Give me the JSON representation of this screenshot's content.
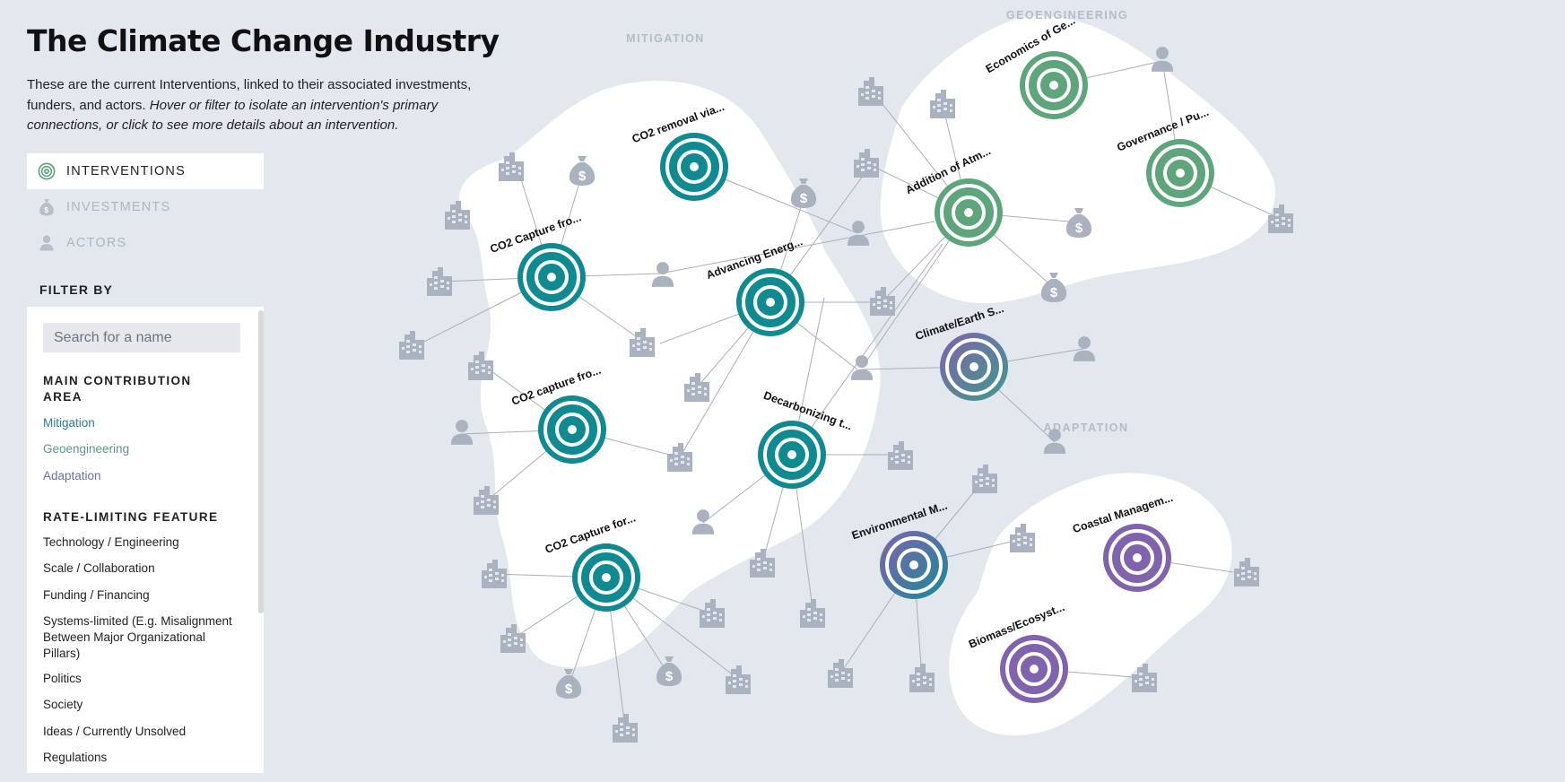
{
  "header": {
    "title": "The Climate Change Industry",
    "intro_plain": "These are the current Interventions, linked to their associated investments, funders, and actors. ",
    "intro_italic": "Hover or filter to isolate an intervention's primary connections, or click to see more details about an intervention."
  },
  "tabs": [
    {
      "label": "INTERVENTIONS",
      "icon": "target-icon",
      "active": true
    },
    {
      "label": "INVESTMENTS",
      "icon": "money-bag-icon",
      "active": false
    },
    {
      "label": "ACTORS",
      "icon": "person-icon",
      "active": false
    }
  ],
  "filter": {
    "heading": "FILTER BY",
    "search_placeholder": "Search for a name",
    "contribution_heading": "MAIN CONTRIBUTION AREA",
    "contribution_options": [
      "Mitigation",
      "Geoengineering",
      "Adaptation"
    ],
    "rate_heading": "RATE-LIMITING FEATURE",
    "rate_options": [
      "Technology / Engineering",
      "Scale / Collaboration",
      "Funding / Financing",
      "Systems-limited (E.g. Misalignment Between Major Organizational Pillars)",
      "Politics",
      "Society",
      "Ideas / Currently Unsolved",
      "Regulations"
    ]
  },
  "colors": {
    "background": "#e3e7ee",
    "mitigation": "#0e8a90",
    "geoengineering": "#5fa57b",
    "adaptation": "#8062ad",
    "node_grey": "#aab2bf"
  },
  "regions": [
    {
      "id": "mitigation",
      "label": "MITIGATION"
    },
    {
      "id": "geoengineering",
      "label": "GEOENGINEERING"
    },
    {
      "id": "adaptation",
      "label": "ADAPTATION"
    }
  ],
  "interventions": [
    {
      "id": "co2-removal",
      "label": "CO2 removal via...",
      "area": "mitigation"
    },
    {
      "id": "co2-capture-1",
      "label": "CO2 Capture fro...",
      "area": "mitigation"
    },
    {
      "id": "advancing-energy",
      "label": "Advancing Energ...",
      "area": "mitigation"
    },
    {
      "id": "co2-capture-2",
      "label": "CO2 capture fro...",
      "area": "mitigation"
    },
    {
      "id": "decarbonizing",
      "label": "Decarbonizing t...",
      "area": "mitigation"
    },
    {
      "id": "co2-capture-3",
      "label": "CO2 Capture for...",
      "area": "mitigation"
    },
    {
      "id": "economics-geo",
      "label": "Economics of Ge...",
      "area": "geoengineering"
    },
    {
      "id": "governance",
      "label": "Governance / Pu...",
      "area": "geoengineering"
    },
    {
      "id": "addition-atm",
      "label": "Addition of Atm...",
      "area": "geoengineering"
    },
    {
      "id": "climate-earth",
      "label": "Climate/Earth S...",
      "area": "mixed"
    },
    {
      "id": "environmental-m",
      "label": "Environmental M...",
      "area": "mixed"
    },
    {
      "id": "coastal-mgmt",
      "label": "Coastal Managem...",
      "area": "adaptation"
    },
    {
      "id": "biomass",
      "label": "Biomass/Ecosyst...",
      "area": "adaptation"
    }
  ]
}
